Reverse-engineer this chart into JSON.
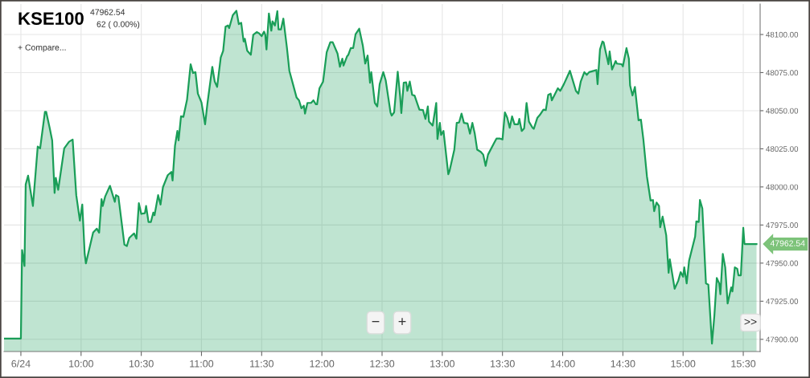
{
  "chart_data": {
    "type": "area",
    "title": "KSE100",
    "annotations": [
      "47962.54",
      "62 ( 0.00%)",
      "+ Compare...",
      "−",
      "+",
      ">>",
      {
        "text": "47962.54",
        "x": 15.64,
        "y": 47962.54
      }
    ],
    "series": [
      {
        "color": "#1a9e58",
        "x": [
          9.36,
          9.5,
          9.51,
          9.53,
          9.54,
          9.56,
          9.6,
          9.64,
          9.66,
          9.7,
          9.71,
          9.74,
          9.76,
          9.78,
          9.79,
          9.81,
          9.86,
          9.9,
          9.93,
          9.96,
          9.99,
          10.01,
          10.03,
          10.04,
          10.1,
          10.13,
          10.15,
          10.17,
          10.18,
          10.2,
          10.24,
          10.28,
          10.29,
          10.31,
          10.36,
          10.38,
          10.4,
          10.44,
          10.46,
          10.48,
          10.5,
          10.53,
          10.54,
          10.56,
          10.58,
          10.6,
          10.61,
          10.64,
          10.66,
          10.68,
          10.72,
          10.75,
          10.76,
          10.78,
          10.8,
          10.81,
          10.83,
          10.85,
          10.88,
          10.91,
          10.93,
          10.95,
          10.97,
          11.0,
          11.03,
          11.05,
          11.09,
          11.11,
          11.13,
          11.16,
          11.18,
          11.2,
          11.22,
          11.23,
          11.26,
          11.29,
          11.31,
          11.33,
          11.35,
          11.36,
          11.38,
          11.41,
          11.43,
          11.46,
          11.48,
          11.5,
          11.52,
          11.53,
          11.54,
          11.56,
          11.58,
          11.59,
          11.61,
          11.63,
          11.64,
          11.66,
          11.68,
          11.71,
          11.73,
          11.76,
          11.79,
          11.81,
          11.83,
          11.85,
          11.86,
          11.88,
          11.91,
          11.93,
          11.95,
          11.96,
          11.98,
          12.01,
          12.04,
          12.07,
          12.09,
          12.12,
          12.13,
          12.15,
          12.17,
          12.18,
          12.21,
          12.22,
          12.24,
          12.26,
          12.28,
          12.31,
          12.34,
          12.36,
          12.38,
          12.4,
          12.41,
          12.44,
          12.46,
          12.48,
          12.51,
          12.53,
          12.57,
          12.58,
          12.6,
          12.63,
          12.65,
          12.66,
          12.68,
          12.7,
          12.71,
          12.73,
          12.75,
          12.77,
          12.81,
          12.84,
          12.86,
          12.88,
          12.89,
          12.92,
          12.95,
          12.96,
          12.98,
          12.99,
          13.01,
          13.05,
          13.06,
          13.1,
          13.12,
          13.14,
          13.16,
          13.18,
          13.21,
          13.23,
          13.25,
          13.27,
          13.29,
          13.32,
          13.34,
          13.36,
          13.38,
          13.43,
          13.45,
          13.48,
          13.5,
          13.52,
          13.54,
          13.56,
          13.58,
          13.6,
          13.63,
          13.64,
          13.66,
          13.68,
          13.7,
          13.72,
          13.75,
          13.76,
          13.79,
          13.81,
          13.84,
          13.86,
          13.88,
          13.9,
          13.91,
          13.96,
          13.98,
          14.01,
          14.04,
          14.06,
          14.09,
          14.11,
          14.13,
          14.15,
          14.18,
          14.2,
          14.22,
          14.26,
          14.28,
          14.29,
          14.31,
          14.33,
          14.34,
          14.38,
          14.39,
          14.41,
          14.44,
          14.45,
          14.49,
          14.5,
          14.53,
          14.55,
          14.56,
          14.58,
          14.6,
          14.63,
          14.65,
          14.67,
          14.7,
          14.73,
          14.75,
          14.76,
          14.78,
          14.8,
          14.81,
          14.83,
          14.86,
          14.88,
          14.89,
          14.93,
          14.96,
          14.98,
          15.0,
          15.01,
          15.03,
          15.05,
          15.1,
          15.11,
          15.13,
          15.14,
          15.16,
          15.19,
          15.21,
          15.24,
          15.26,
          15.28,
          15.3,
          15.31,
          15.33,
          15.35,
          15.37,
          15.4,
          15.41,
          15.43,
          15.45,
          15.46,
          15.48,
          15.5,
          15.51,
          15.61
        ],
        "values": [
          47900.5,
          47900.5,
          47958.6,
          47948.1,
          48001.6,
          48007.4,
          47987.5,
          48026.5,
          48025.3,
          48049.3,
          48049.3,
          48038.4,
          48030.5,
          47996.0,
          48006.0,
          47998.1,
          48025.3,
          48029.6,
          48031.1,
          47994.6,
          47977.9,
          47988.4,
          47956.0,
          47949.8,
          47970.0,
          47972.6,
          47970.0,
          47992.0,
          47987.5,
          47993.7,
          48000.7,
          47990.2,
          47994.6,
          47993.7,
          47962.1,
          47961.2,
          47966.5,
          47969.5,
          47966.0,
          47989.3,
          47982.3,
          47982.8,
          47987.5,
          47977.0,
          47977.0,
          47983.2,
          47981.4,
          47994.6,
          47988.4,
          47999.8,
          48007.7,
          48009.8,
          48004.2,
          48027.0,
          48036.7,
          48030.5,
          48046.3,
          48046.0,
          48057.2,
          48080.5,
          48074.7,
          48075.3,
          48061.2,
          48055.4,
          48041.1,
          48055.1,
          48078.8,
          48069.1,
          48065.6,
          48084.9,
          48089.3,
          48105.1,
          48105.9,
          48104.2,
          48112.6,
          48115.6,
          48106.8,
          48107.7,
          48095.4,
          48097.2,
          48089.3,
          48086.7,
          48099.8,
          48101.6,
          48100.7,
          48098.9,
          48101.9,
          48099.8,
          48090.2,
          48113.8,
          48102.5,
          48108.6,
          48105.9,
          48115.3,
          48103.3,
          48103.3,
          48110.4,
          48091.1,
          48076.2,
          48067.4,
          48058.6,
          48056.8,
          48051.6,
          48053.3,
          48048.1,
          48055.1,
          48055.1,
          48056.8,
          48054.2,
          48054.2,
          48064.7,
          48069.1,
          48088.4,
          48094.9,
          48094.9,
          48089.3,
          48087.5,
          48078.8,
          48084.1,
          48079.6,
          48085.8,
          48086.7,
          48091.1,
          48091.1,
          48100.2,
          48103.8,
          48092.8,
          48080.9,
          48086.2,
          48068.3,
          48075.3,
          48055.1,
          48052.8,
          48067.4,
          48075.3,
          48070.0,
          48048.9,
          48046.8,
          48048.9,
          48075.6,
          48059.5,
          48048.4,
          48068.3,
          48068.6,
          48063.0,
          48069.1,
          48060.4,
          48059.9,
          48050.7,
          48050.4,
          48044.6,
          48052.8,
          48042.8,
          48040.2,
          48055.1,
          48031.4,
          48042.0,
          48034.1,
          48036.7,
          48008.3,
          48010.4,
          48024.4,
          48042.0,
          48042.3,
          48048.1,
          48042.0,
          48041.6,
          48034.9,
          48042.0,
          48034.9,
          48024.4,
          48023.0,
          48021.2,
          48013.8,
          48021.2,
          48028.8,
          48031.7,
          48031.7,
          48031.1,
          48048.9,
          48045.4,
          48038.8,
          48046.3,
          48041.1,
          48041.1,
          48044.6,
          48036.7,
          48038.4,
          48055.1,
          48042.8,
          48038.8,
          48038.1,
          48045.4,
          48047.2,
          48050.7,
          48050.4,
          48060.4,
          48061.2,
          48056.8,
          48064.7,
          48063.0,
          48067.4,
          48072.6,
          48076.2,
          48068.3,
          48063.0,
          48061.2,
          48069.1,
          48075.3,
          48073.5,
          48075.3,
          48076.2,
          48076.7,
          48067.4,
          48090.2,
          48095.4,
          48094.9,
          48080.5,
          48088.9,
          48077.0,
          48082.6,
          48080.9,
          48080.5,
          48079.1,
          48091.1,
          48084.1,
          48066.5,
          48060.0,
          48065.6,
          48043.7,
          48044.1,
          48031.4,
          48006.8,
          47991.1,
          47991.4,
          47984.1,
          47989.8,
          47987.5,
          47973.5,
          47980.5,
          47968.3,
          47943.7,
          47952.5,
          47933.2,
          47938.4,
          47944.1,
          47941.1,
          47947.2,
          47936.7,
          47951.6,
          47967.4,
          47977.4,
          47977.0,
          47991.4,
          47985.8,
          47936.7,
          47935.8,
          47897.2,
          47915.6,
          47940.2,
          47936.7,
          47929.6,
          47956.0,
          47947.2,
          47923.5,
          47934.1,
          47931.4,
          47947.2,
          47946.3,
          47942.0,
          47942.0,
          47973.2,
          47962.54,
          47962.54
        ]
      }
    ],
    "xlim": [
      9.36,
      15.64
    ],
    "ylim": [
      47892,
      48120
    ],
    "xticks": [
      {
        "value": 9.5,
        "label": "6/24"
      },
      {
        "value": 10,
        "label": "10:00"
      },
      {
        "value": 10.5,
        "label": "10:30"
      },
      {
        "value": 11,
        "label": "11:00"
      },
      {
        "value": 11.5,
        "label": "11:30"
      },
      {
        "value": 12,
        "label": "12:00"
      },
      {
        "value": 12.5,
        "label": "12:30"
      },
      {
        "value": 13,
        "label": "13:00"
      },
      {
        "value": 13.5,
        "label": "13:30"
      },
      {
        "value": 14,
        "label": "14:00"
      },
      {
        "value": 14.5,
        "label": "14:30"
      },
      {
        "value": 15,
        "label": "15:00"
      },
      {
        "value": 15.5,
        "label": "15:30"
      }
    ],
    "yticks": [
      {
        "value": 47900,
        "label": "47900.00"
      },
      {
        "value": 47925,
        "label": "47925.00"
      },
      {
        "value": 47950,
        "label": "47950.00"
      },
      {
        "value": 47975,
        "label": "47975.00"
      },
      {
        "value": 48000,
        "label": "48000.00"
      },
      {
        "value": 48025,
        "label": "48025.00"
      },
      {
        "value": 48050,
        "label": "48050.00"
      },
      {
        "value": 48075,
        "label": "48075.00"
      },
      {
        "value": 48100,
        "label": "48100.00"
      }
    ],
    "grid": true,
    "legend": false
  }
}
